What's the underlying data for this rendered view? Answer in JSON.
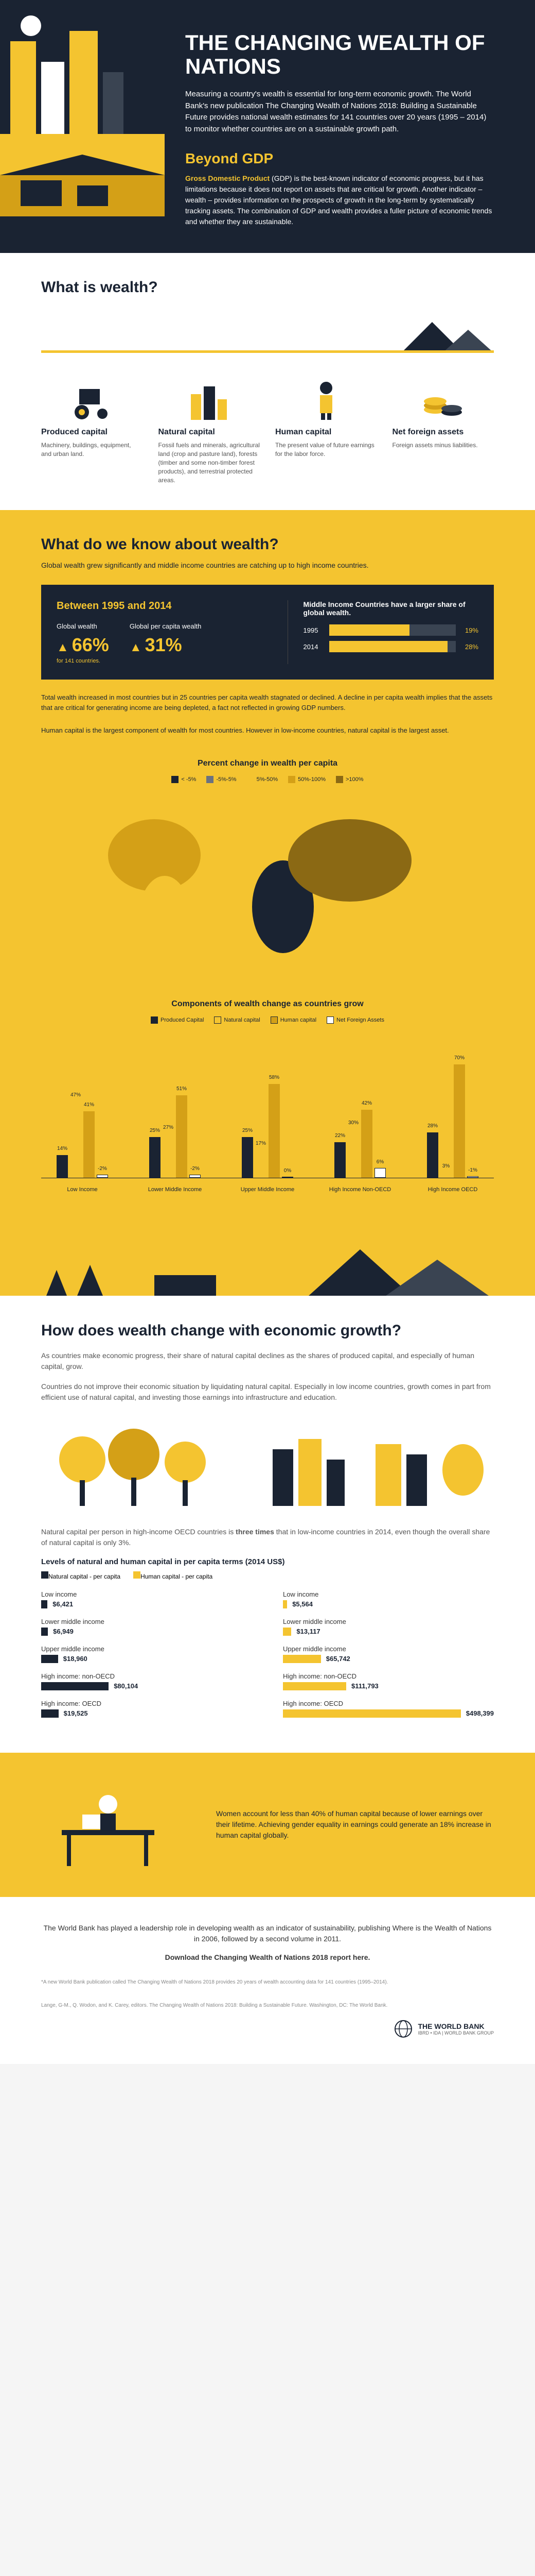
{
  "colors": {
    "navy": "#1a2332",
    "yellow": "#f4c430",
    "white": "#ffffff",
    "orange": "#d4a017",
    "darkgray": "#3a4452"
  },
  "header": {
    "title": "THE CHANGING WEALTH OF NATIONS",
    "intro": "Measuring a country's wealth is essential for long-term economic growth. The World Bank's new publication The Changing Wealth of Nations 2018: Building a Sustainable Future provides national wealth estimates for 141 countries over 20 years (1995 – 2014) to monitor whether countries are on a sustainable growth path.",
    "beyond_title": "Beyond GDP",
    "beyond_text": "Gross Domestic Product (GDP) is the best-known indicator of economic progress, but it has limitations because it does not report on assets that are critical for growth. Another indicator – wealth – provides information on the prospects of growth in the long-term by systematically tracking assets. The combination of GDP and wealth provides a fuller picture of economic trends and whether they are sustainable."
  },
  "wealth_def": {
    "title": "What is wealth?",
    "items": [
      {
        "title": "Produced capital",
        "desc": "Machinery, buildings, equipment, and urban land."
      },
      {
        "title": "Natural capital",
        "desc": "Fossil fuels and minerals, agricultural land (crop and pasture land), forests (timber and some non-timber forest products), and terrestrial protected areas."
      },
      {
        "title": "Human capital",
        "desc": "The present value of future earnings for the labor force."
      },
      {
        "title": "Net foreign assets",
        "desc": "Foreign assets minus liabilities."
      }
    ]
  },
  "know": {
    "title": "What do we know about wealth?",
    "sub": "Global wealth grew significantly and middle income countries are catching up to high income countries.",
    "period": "Between 1995 and 2014",
    "gw_label": "Global wealth",
    "gw_val": "66%",
    "gw_note": "for 141 countries.",
    "gpc_label": "Global per capita wealth",
    "gpc_val": "31%",
    "mic_title": "Middle Income Countries have a larger share of global wealth.",
    "bars": [
      {
        "year": "1995",
        "pct": 19,
        "pct_label": "19%"
      },
      {
        "year": "2014",
        "pct": 28,
        "pct_label": "28%"
      }
    ],
    "para1": "Total wealth increased in most countries but in 25 countries per capita wealth stagnated or declined. A decline in per capita wealth implies that the assets that are critical for generating income are being depleted, a fact not reflected in growing GDP numbers.",
    "para2": "Human capital is the largest component of wealth for most countries. However in low-income countries, natural capital is the largest asset."
  },
  "map": {
    "title": "Percent change in wealth per capita",
    "legend": [
      {
        "label": "< -5%",
        "color": "#1a2332"
      },
      {
        "label": "-5%-5%",
        "color": "#6b7280"
      },
      {
        "label": "5%-50%",
        "color": "#f4c430"
      },
      {
        "label": "50%-100%",
        "color": "#d4a017"
      },
      {
        "label": ">100%",
        "color": "#8b6914"
      }
    ]
  },
  "components": {
    "title": "Components of wealth change as countries grow",
    "legend": [
      {
        "label": "Produced Capital",
        "color": "#1a2332"
      },
      {
        "label": "Natural capital",
        "color": "#f4c430"
      },
      {
        "label": "Human capital",
        "color": "#d4a017"
      },
      {
        "label": "Net Foreign Assets",
        "color": "#ffffff"
      }
    ],
    "groups": [
      {
        "label": "Low Income",
        "bars": [
          {
            "v": 14,
            "c": "#1a2332"
          },
          {
            "v": 47,
            "c": "#f4c430"
          },
          {
            "v": 41,
            "c": "#d4a017"
          },
          {
            "v": -2,
            "c": "#ffffff"
          }
        ]
      },
      {
        "label": "Lower Middle Income",
        "bars": [
          {
            "v": 25,
            "c": "#1a2332"
          },
          {
            "v": 27,
            "c": "#f4c430"
          },
          {
            "v": 51,
            "c": "#d4a017"
          },
          {
            "v": -2,
            "c": "#ffffff"
          }
        ]
      },
      {
        "label": "Upper Middle Income",
        "bars": [
          {
            "v": 25,
            "c": "#1a2332"
          },
          {
            "v": 17,
            "c": "#f4c430"
          },
          {
            "v": 58,
            "c": "#d4a017"
          },
          {
            "v": 0,
            "c": "#ffffff"
          }
        ]
      },
      {
        "label": "High Income Non-OECD",
        "bars": [
          {
            "v": 22,
            "c": "#1a2332"
          },
          {
            "v": 30,
            "c": "#f4c430"
          },
          {
            "v": 42,
            "c": "#d4a017"
          },
          {
            "v": 6,
            "c": "#ffffff"
          }
        ]
      },
      {
        "label": "High Income OECD",
        "bars": [
          {
            "v": 28,
            "c": "#1a2332"
          },
          {
            "v": 3,
            "c": "#f4c430"
          },
          {
            "v": 70,
            "c": "#d4a017"
          },
          {
            "v": -1,
            "c": "#ffffff"
          }
        ]
      }
    ],
    "ymax": 70
  },
  "growth": {
    "title": "How does wealth change with economic growth?",
    "p1": "As countries make economic progress, their share of natural capital declines as the shares of produced capital, and especially of human capital, grow.",
    "p2": "Countries do not improve their economic situation by liquidating natural capital. Especially in low income countries, growth comes in part from efficient use of natural capital, and investing those earnings into infrastructure and education.",
    "nat3x": "Natural capital per person in high-income OECD countries is three times that in low-income countries in 2014, even though the overall share of natural capital is only 3%."
  },
  "levels": {
    "title": "Levels of natural and human capital in per capita terms (2014 US$)",
    "legend": [
      {
        "label": "Natural capital - per capita",
        "color": "#1a2332"
      },
      {
        "label": "Human capital - per capita",
        "color": "#f4c430"
      }
    ],
    "natural": [
      {
        "label": "Low income",
        "val": "$6,421",
        "w": 3
      },
      {
        "label": "Lower middle income",
        "val": "$6,949",
        "w": 3.2
      },
      {
        "label": "Upper middle income",
        "val": "$18,960",
        "w": 8
      },
      {
        "label": "High income: non-OECD",
        "val": "$80,104",
        "w": 32
      },
      {
        "label": "High income: OECD",
        "val": "$19,525",
        "w": 8.2
      }
    ],
    "human": [
      {
        "label": "Low income",
        "val": "$5,564",
        "w": 2
      },
      {
        "label": "Lower middle income",
        "val": "$13,117",
        "w": 4
      },
      {
        "label": "Upper middle income",
        "val": "$65,742",
        "w": 18
      },
      {
        "label": "High income: non-OECD",
        "val": "$111,793",
        "w": 30
      },
      {
        "label": "High income: OECD",
        "val": "$498,399",
        "w": 100
      }
    ]
  },
  "women": {
    "text": "Women account for less than 40% of human capital because of lower earnings over their lifetime. Achieving gender equality in earnings could generate an 18% increase in human capital globally."
  },
  "footer": {
    "p1": "The World Bank has played a leadership role in developing wealth as an indicator of sustainability, publishing Where is the Wealth of Nations in 2006, followed by a second volume in 2011.",
    "dl": "Download the Changing Wealth of Nations 2018 report here.",
    "fine1": "*A new World Bank publication called The Changing Wealth of Nations 2018 provides 20 years of wealth accounting data for 141 countries (1995–2014).",
    "fine2": "Lange, G-M., Q. Wodon, and K. Carey, editors. The Changing Wealth of Nations 2018: Building a Sustainable Future. Washington, DC: The World Bank.",
    "logo": "THE WORLD BANK",
    "logo_sub": "IBRD • IDA | WORLD BANK GROUP"
  }
}
